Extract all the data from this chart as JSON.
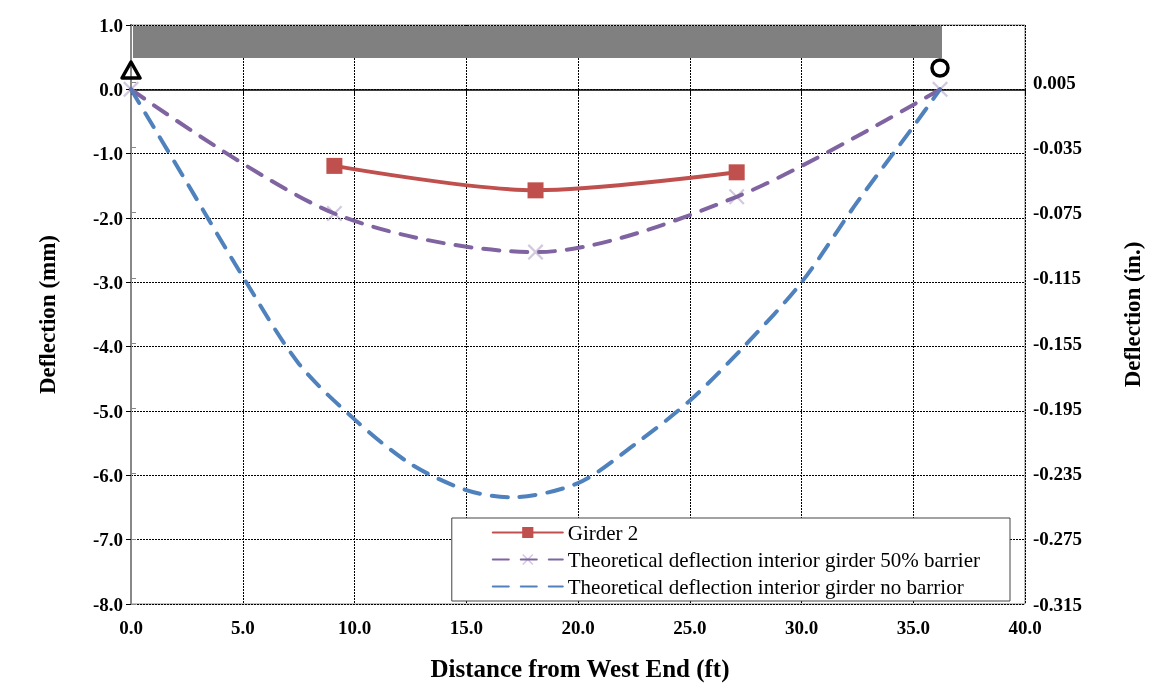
{
  "chart_data": {
    "type": "line",
    "xlabel": "Distance from West End (ft)",
    "ylabel": "Deflection (mm)",
    "y2label": "Deflection (in.)",
    "xlim": [
      0,
      40
    ],
    "xticks": [
      {
        "value": 0,
        "label": "0.0"
      },
      {
        "value": 5,
        "label": "5.0"
      },
      {
        "value": 10,
        "label": "10.0"
      },
      {
        "value": 15,
        "label": "15.0"
      },
      {
        "value": 20,
        "label": "20.0"
      },
      {
        "value": 25,
        "label": "25.0"
      },
      {
        "value": 30,
        "label": "30.0"
      },
      {
        "value": 35,
        "label": "35.0"
      },
      {
        "value": 40,
        "label": "40.0"
      }
    ],
    "ylim": [
      -8,
      1
    ],
    "yticks": [
      {
        "value": -8,
        "label": "-8.0"
      },
      {
        "value": -7,
        "label": "-7.0"
      },
      {
        "value": -6,
        "label": "-6.0"
      },
      {
        "value": -5,
        "label": "-5.0"
      },
      {
        "value": -4,
        "label": "-4.0"
      },
      {
        "value": -3,
        "label": "-3.0"
      },
      {
        "value": -2,
        "label": "-2.0"
      },
      {
        "value": -1,
        "label": "-1.0"
      },
      {
        "value": 0,
        "label": "0.0"
      },
      {
        "value": 1,
        "label": "1.0"
      }
    ],
    "y2lim": [
      -0.315,
      0.04
    ],
    "y2ticks": [
      -0.315,
      -0.275,
      -0.235,
      -0.195,
      -0.155,
      -0.115,
      -0.075,
      -0.035,
      0.005
    ],
    "grid": true,
    "legend": "bottom right",
    "series": [
      {
        "name": "Girder 2",
        "color": "#c0504d",
        "marker": "square",
        "line_style": "solid",
        "x": [
          9.1,
          18.1,
          27.1
        ],
        "values": [
          -1.19,
          -1.57,
          -1.29
        ]
      },
      {
        "name": "Theoretical deflection interior girder 50% barrier",
        "color": "#8064a2",
        "marker": "cross",
        "line_style": "dashed",
        "x": [
          0,
          9.1,
          18.1,
          27.1,
          36.2
        ],
        "values": [
          0,
          -1.93,
          -2.53,
          -1.67,
          0
        ]
      },
      {
        "name": "Theoretical deflection interior girder no barrior",
        "color": "#4f81bd",
        "marker": "none",
        "line_style": "dashed",
        "x": [
          0,
          2.5,
          5,
          7.5,
          10,
          12.5,
          15,
          17,
          20,
          22.5,
          25,
          27.5,
          30,
          32.5,
          35,
          36.2
        ],
        "values": [
          0,
          -1.45,
          -2.91,
          -4.26,
          -5.13,
          -5.82,
          -6.23,
          -6.34,
          -6.12,
          -5.53,
          -4.84,
          -3.97,
          -3.0,
          -1.75,
          -0.58,
          0
        ]
      }
    ]
  }
}
